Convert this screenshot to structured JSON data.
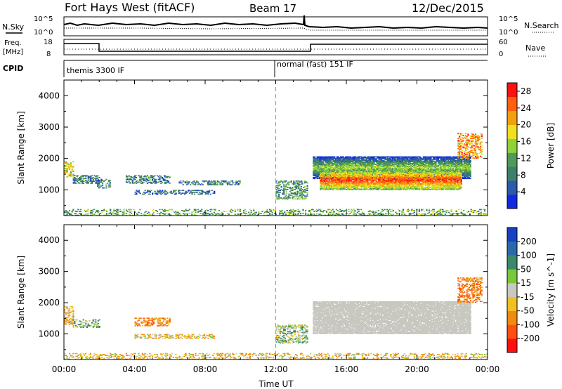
{
  "header": {
    "station": "Fort Hays West (fitACF)",
    "beam": "Beam 17",
    "date": "12/Dec/2015"
  },
  "noise_panel": {
    "left_label": "N.Sky",
    "right_label": "N.Search",
    "left_ticks": [
      "10^5",
      "10^0"
    ],
    "right_ticks": [
      "10^5",
      "10^0"
    ]
  },
  "freq_panel": {
    "left_label_1": "Freq.",
    "left_label_2": "[MHz]",
    "right_label": "Nave",
    "left_ticks": [
      "18",
      "8"
    ],
    "right_ticks": [
      "60",
      "0"
    ]
  },
  "cpid_panel": {
    "label": "CPID",
    "modes": [
      "themis 3300 IF",
      "normal (fast) 151 IF"
    ],
    "switch_hour": 12
  },
  "chart_data": [
    {
      "type": "heatmap",
      "title": "",
      "ylabel": "Slant Range [km]",
      "xlabel": "Time UT",
      "x_ticks": [
        "00:00",
        "04:00",
        "08:00",
        "12:00",
        "16:00",
        "20:00",
        "00:00"
      ],
      "x_range_hours": [
        0,
        24
      ],
      "y_ticks": [
        1000,
        2000,
        3000,
        4000
      ],
      "ylim": [
        180,
        4500
      ],
      "colorbar": {
        "label": "Power [dB]",
        "ticks": [
          4,
          8,
          12,
          16,
          20,
          24,
          28
        ],
        "range": [
          0,
          30
        ],
        "colors": [
          "#1428e0",
          "#2a5aa8",
          "#3f7f6a",
          "#4f9a5a",
          "#8fd23a",
          "#f0e020",
          "#f0a010",
          "#ff6010",
          "#ff1010"
        ]
      },
      "regions": [
        {
          "t0": 0.0,
          "t1": 0.5,
          "r0": 1400,
          "r1": 1900,
          "value": 17
        },
        {
          "t0": 0.5,
          "t1": 2.0,
          "r0": 1200,
          "r1": 1450,
          "value": 9
        },
        {
          "t0": 1.8,
          "t1": 2.6,
          "r0": 1050,
          "r1": 1350,
          "value": 8
        },
        {
          "t0": 3.5,
          "t1": 6.0,
          "r0": 1200,
          "r1": 1450,
          "value": 8
        },
        {
          "t0": 4.0,
          "t1": 8.5,
          "r0": 850,
          "r1": 1000,
          "value": 7
        },
        {
          "t0": 6.5,
          "t1": 10.0,
          "r0": 1150,
          "r1": 1300,
          "value": 8
        },
        {
          "t0": 12.0,
          "t1": 13.8,
          "r0": 700,
          "r1": 1300,
          "value": 10
        },
        {
          "t0": 14.1,
          "t1": 23.0,
          "r0": 1350,
          "r1": 2050,
          "value": 16
        },
        {
          "t0": 14.5,
          "t1": 22.5,
          "r0": 1000,
          "r1": 1600,
          "value": 27
        },
        {
          "t0": 22.3,
          "t1": 23.7,
          "r0": 2000,
          "r1": 2800,
          "value": 22
        },
        {
          "t0": 0.0,
          "t1": 24.0,
          "r0": 180,
          "r1": 380,
          "value": 12
        }
      ]
    },
    {
      "type": "heatmap",
      "title": "",
      "ylabel": "Slant Range [km]",
      "xlabel": "Time UT",
      "x_ticks": [
        "00:00",
        "04:00",
        "08:00",
        "12:00",
        "16:00",
        "20:00",
        "00:00"
      ],
      "x_range_hours": [
        0,
        24
      ],
      "y_ticks": [
        1000,
        2000,
        3000,
        4000
      ],
      "ylim": [
        180,
        4500
      ],
      "colorbar": {
        "label": "Velocity [m s^-1]",
        "ticks": [
          "200",
          "100",
          "50",
          "15",
          "-15",
          "-50",
          "-100",
          "-200"
        ],
        "colors": [
          "#1840c0",
          "#2a6aa8",
          "#3a8a6a",
          "#7ac83a",
          "#c8c8c0",
          "#f0c020",
          "#f08a10",
          "#ff5010",
          "#ff1010"
        ]
      },
      "regions": [
        {
          "t0": 0.0,
          "t1": 0.5,
          "r0": 1300,
          "r1": 1900,
          "value": -40
        },
        {
          "t0": 0.5,
          "t1": 2.0,
          "r0": 1200,
          "r1": 1450,
          "value": 30
        },
        {
          "t0": 4.0,
          "t1": 6.0,
          "r0": 1250,
          "r1": 1500,
          "value": -80
        },
        {
          "t0": 4.0,
          "t1": 8.5,
          "r0": 850,
          "r1": 1000,
          "value": -30
        },
        {
          "t0": 12.0,
          "t1": 13.8,
          "r0": 700,
          "r1": 1300,
          "value": 20
        },
        {
          "t0": 14.1,
          "t1": 23.0,
          "r0": 1000,
          "r1": 2050,
          "value": 0
        },
        {
          "t0": 22.3,
          "t1": 23.7,
          "r0": 2000,
          "r1": 2800,
          "value": -90
        },
        {
          "t0": 0.0,
          "t1": 24.0,
          "r0": 180,
          "r1": 380,
          "value": -30
        }
      ]
    }
  ]
}
